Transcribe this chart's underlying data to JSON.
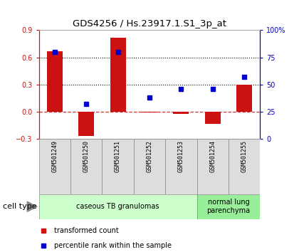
{
  "title": "GDS4256 / Hs.23917.1.S1_3p_at",
  "samples": [
    "GSM501249",
    "GSM501250",
    "GSM501251",
    "GSM501252",
    "GSM501253",
    "GSM501254",
    "GSM501255"
  ],
  "transformed_count": [
    0.67,
    -0.27,
    0.82,
    -0.01,
    -0.03,
    -0.14,
    0.3
  ],
  "percentile_rank": [
    80,
    32,
    80,
    38,
    46,
    46,
    57
  ],
  "bar_color": "#cc1111",
  "dot_color": "#0000cc",
  "ylim_left": [
    -0.3,
    0.9
  ],
  "ylim_right": [
    0,
    100
  ],
  "yticks_left": [
    -0.3,
    0.0,
    0.3,
    0.6,
    0.9
  ],
  "yticks_right": [
    0,
    25,
    50,
    75,
    100
  ],
  "yticklabels_right": [
    "0",
    "25",
    "50",
    "75",
    "100%"
  ],
  "hline_zero_color": "#cc3333",
  "hline_dotted_color": "black",
  "cell_type_groups": [
    {
      "label": "caseous TB granulomas",
      "indices": [
        0,
        1,
        2,
        3,
        4
      ],
      "color": "#ccffcc"
    },
    {
      "label": "normal lung\nparenchyma",
      "indices": [
        5,
        6
      ],
      "color": "#99ee99"
    }
  ],
  "cell_type_label": "cell type",
  "legend_bar_label": "transformed count",
  "legend_dot_label": "percentile rank within the sample",
  "bar_width": 0.5,
  "sample_box_color": "#dddddd",
  "sample_box_edge": "#888888"
}
